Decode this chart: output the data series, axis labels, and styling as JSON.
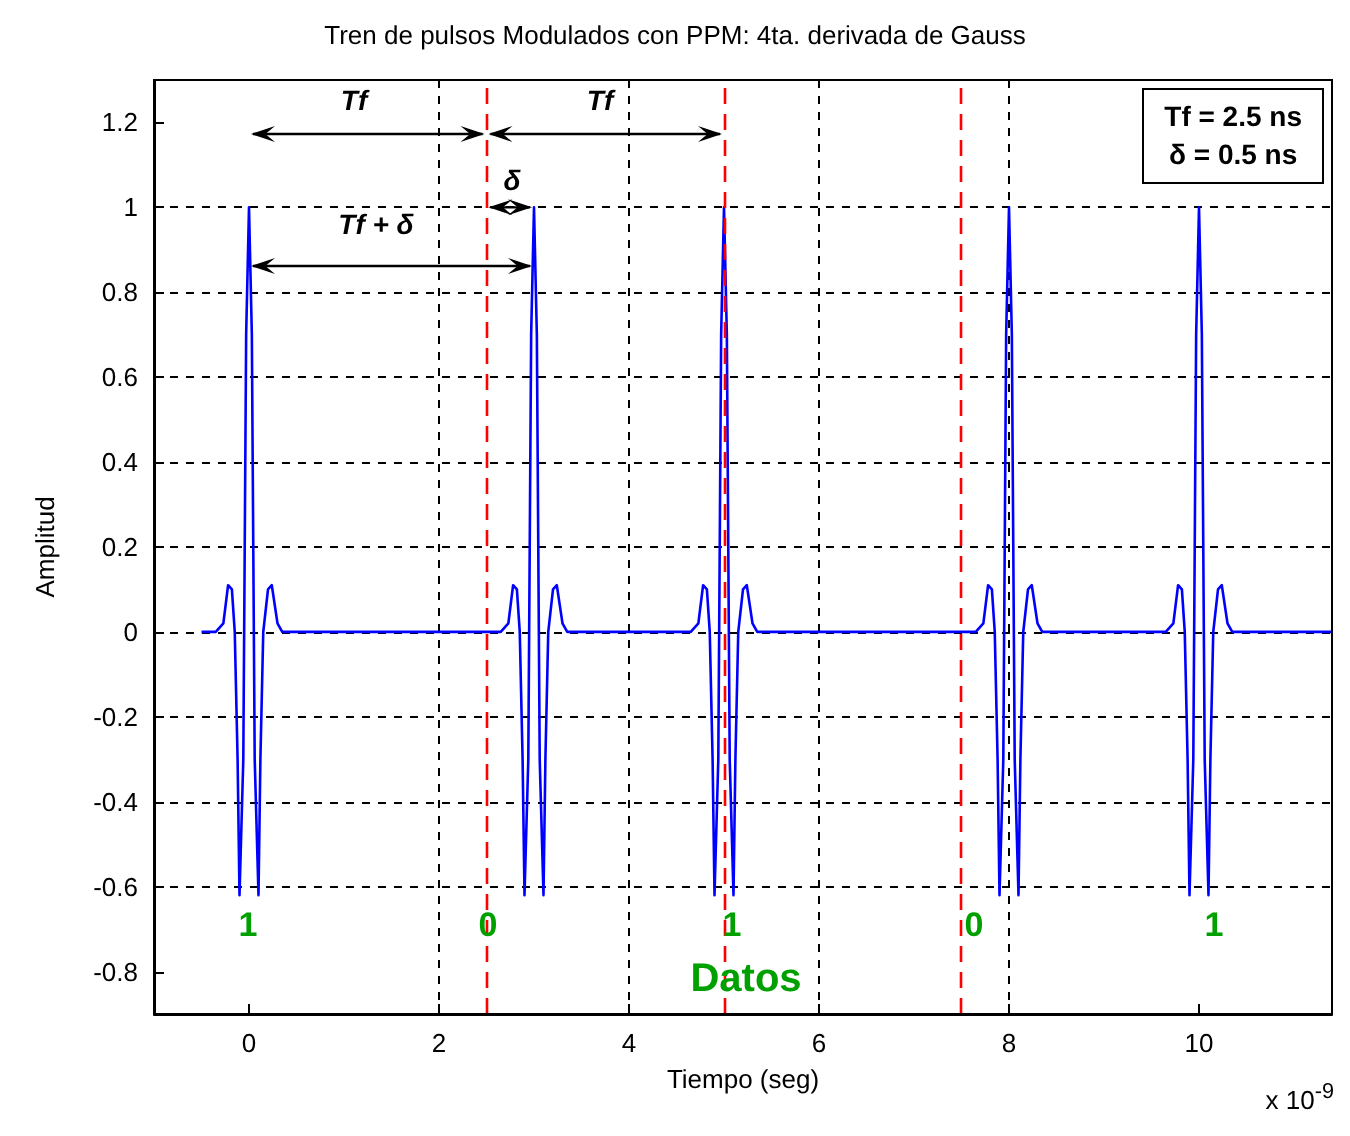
{
  "chart_data": {
    "type": "line",
    "title": "Tren de pulsos Modulados con PPM: 4ta. derivada de Gauss",
    "xlabel": "Tiempo (seg)",
    "ylabel": "Amplitud",
    "xlim": [
      -1,
      11.4
    ],
    "xticks": [
      0,
      2,
      4,
      6,
      8,
      10
    ],
    "ylim": [
      -0.9,
      1.3
    ],
    "yticks": [
      -0.8,
      -0.6,
      -0.4,
      -0.2,
      0,
      0.2,
      0.4,
      0.6,
      0.8,
      1,
      1.2
    ],
    "grid": true,
    "marker": "none",
    "line_style": "solid",
    "x": [
      -0.5,
      -0.35,
      -0.27,
      -0.22,
      -0.18,
      -0.15,
      -0.12,
      -0.1,
      -0.06,
      -0.03,
      0,
      0.03,
      0.06,
      0.1,
      0.12,
      0.15,
      0.2,
      0.24,
      0.3,
      0.35,
      2.65,
      2.73,
      2.78,
      2.82,
      2.85,
      2.88,
      2.9,
      2.94,
      2.97,
      3,
      3.03,
      3.06,
      3.1,
      3.12,
      3.15,
      3.2,
      3.24,
      3.3,
      3.35,
      4.65,
      4.73,
      4.78,
      4.82,
      4.85,
      4.88,
      4.9,
      4.94,
      4.97,
      5,
      5.03,
      5.06,
      5.1,
      5.12,
      5.15,
      5.2,
      5.24,
      5.3,
      5.35,
      7.65,
      7.73,
      7.78,
      7.82,
      7.85,
      7.88,
      7.9,
      7.94,
      7.97,
      8,
      8.03,
      8.06,
      8.1,
      8.12,
      8.15,
      8.2,
      8.24,
      8.3,
      8.35,
      9.65,
      9.73,
      9.78,
      9.82,
      9.85,
      9.88,
      9.9,
      9.94,
      9.97,
      10,
      10.03,
      10.06,
      10.1,
      10.12,
      10.15,
      10.2,
      10.24,
      10.3,
      10.35,
      11.4
    ],
    "series": [
      {
        "color": "#0000ff",
        "values": [
          0,
          0,
          0.02,
          0.11,
          0.1,
          0,
          -0.3,
          -0.62,
          -0.3,
          0.7,
          1,
          0.7,
          -0.3,
          -0.62,
          -0.3,
          0,
          0.1,
          0.11,
          0.02,
          0,
          0,
          0.02,
          0.11,
          0.1,
          0,
          -0.3,
          -0.62,
          -0.3,
          0.7,
          1,
          0.7,
          -0.3,
          -0.62,
          -0.3,
          0,
          0.1,
          0.11,
          0.02,
          0,
          0,
          0.02,
          0.11,
          0.1,
          0,
          -0.3,
          -0.62,
          -0.3,
          0.7,
          1,
          0.7,
          -0.3,
          -0.62,
          -0.3,
          0,
          0.1,
          0.11,
          0.02,
          0,
          0,
          0.02,
          0.11,
          0.1,
          0,
          -0.3,
          -0.62,
          -0.3,
          0.7,
          1,
          0.7,
          -0.3,
          -0.62,
          -0.3,
          0,
          0.1,
          0.11,
          0.02,
          0,
          0,
          0.02,
          0.11,
          0.1,
          0,
          -0.3,
          -0.62,
          -0.3,
          0.7,
          1,
          0.7,
          -0.3,
          -0.62,
          -0.3,
          0,
          0.1,
          0.11,
          0.02,
          0,
          0
        ]
      }
    ],
    "ref_lines": [
      {
        "axis": "x",
        "value": 2.5,
        "color": "#ff0000",
        "line_style": "dashed"
      },
      {
        "axis": "x",
        "value": 5,
        "color": "#ff0000",
        "line_style": "dashed"
      },
      {
        "axis": "x",
        "value": 7.5,
        "color": "#ff0000",
        "line_style": "dashed"
      }
    ],
    "annotations": [
      "Tf",
      "Tf",
      {
        "text": "δ",
        "x": 3,
        "y": 1
      },
      "Tf + δ",
      "1",
      "0",
      "1",
      "0",
      "1",
      "Datos",
      "Tf = 2.5 ns",
      "δ = 0.5 ns",
      "x 10$^{-9}$"
    ]
  }
}
